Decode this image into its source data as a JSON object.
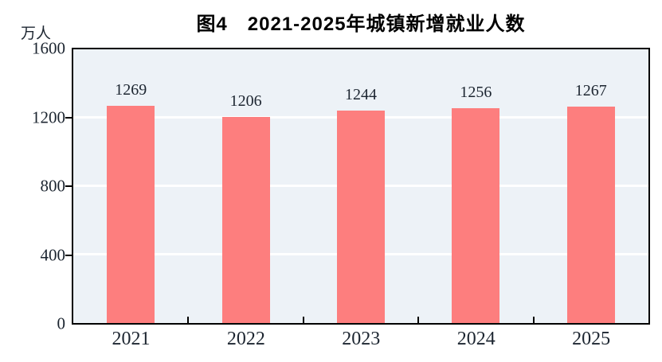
{
  "title": "图4　2021-2025年城镇新增就业人数",
  "unit_label": "万人",
  "colors": {
    "bar": "#FD7E7E",
    "plot_background": "#EDF2F7",
    "gridline": "#FFFFFF",
    "axis": "#000000",
    "tick_text": "#1C2530",
    "title_text": "#000000"
  },
  "chart_data": {
    "type": "bar",
    "title": "图4　2021-2025年城镇新增就业人数",
    "categories": [
      "2021",
      "2022",
      "2023",
      "2024",
      "2025"
    ],
    "values": [
      1269,
      1206,
      1244,
      1256,
      1267
    ],
    "value_labels": [
      "1269",
      "1206",
      "1244",
      "1256",
      "1267"
    ],
    "xlabel": "",
    "ylabel": "万人",
    "ylim": [
      0,
      1600
    ],
    "yticks": [
      0,
      400,
      800,
      1200,
      1600
    ],
    "ytick_labels": [
      "0",
      "400",
      "800",
      "1200",
      "1600"
    ],
    "gridlines_at": [
      400,
      800,
      1200
    ],
    "grid": true,
    "legend_position": "none",
    "bar_color": "#FD7E7E",
    "plot_background": "#EDF2F7"
  }
}
